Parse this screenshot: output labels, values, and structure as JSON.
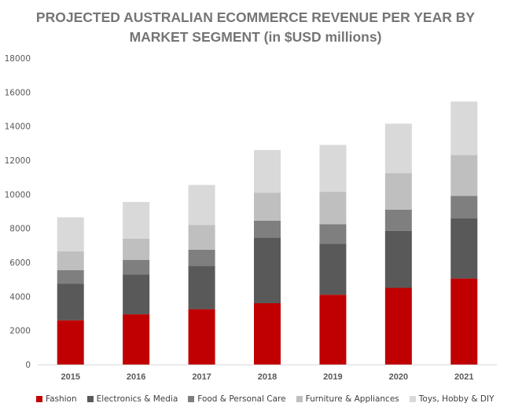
{
  "chart_data": {
    "type": "bar",
    "stacked": true,
    "title_lines": [
      "PROJECTED AUSTRALIAN ECOMMERCE REVENUE PER YEAR BY",
      "MARKET SEGMENT (in $USD millions)"
    ],
    "categories": [
      "2015",
      "2016",
      "2017",
      "2018",
      "2019",
      "2020",
      "2021"
    ],
    "series": [
      {
        "name": "Fashion",
        "color": "#c00000",
        "values": [
          2600,
          2950,
          3250,
          3600,
          4100,
          4500,
          5050
        ]
      },
      {
        "name": "Electronics & Media",
        "color": "#595959",
        "values": [
          2150,
          2350,
          2550,
          3850,
          3000,
          3350,
          3550
        ]
      },
      {
        "name": "Food & Personal Care",
        "color": "#7f7f7f",
        "values": [
          800,
          850,
          950,
          1000,
          1150,
          1250,
          1300
        ]
      },
      {
        "name": "Furniture & Appliances",
        "color": "#bfbfbf",
        "values": [
          1100,
          1250,
          1450,
          1650,
          1900,
          2150,
          2400
        ]
      },
      {
        "name": "Toys, Hobby & DIY",
        "color": "#d9d9d9",
        "values": [
          2000,
          2150,
          2350,
          2500,
          2750,
          2900,
          3150
        ]
      }
    ],
    "yticks": [
      "0",
      "2000",
      "4000",
      "6000",
      "8000",
      "10000",
      "12000",
      "14000",
      "16000",
      "18000"
    ],
    "ylim": [
      0,
      18000
    ],
    "grid": false,
    "legend_position": "bottom"
  }
}
